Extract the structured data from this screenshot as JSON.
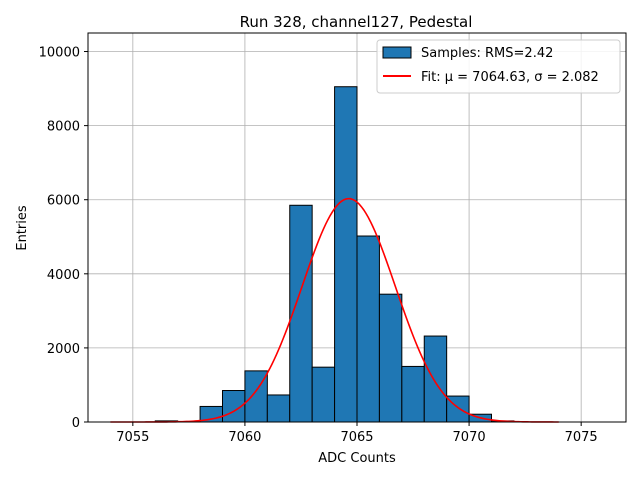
{
  "chart_data": {
    "type": "bar",
    "title": "Run 328, channel127, Pedestal",
    "xlabel": "ADC Counts",
    "ylabel": "Entries",
    "xlim": [
      7053,
      7077
    ],
    "ylim": [
      0,
      10500
    ],
    "grid": true,
    "legend_position": "top-right",
    "x_ticks": [
      7055,
      7060,
      7065,
      7070,
      7075
    ],
    "x_tick_labels": [
      "7055",
      "7060",
      "7065",
      "7070",
      "7075"
    ],
    "y_ticks": [
      0,
      2000,
      4000,
      6000,
      8000,
      10000
    ],
    "y_tick_labels": [
      "0",
      "2000",
      "4000",
      "6000",
      "8000",
      "10000"
    ],
    "bin_width": 1.0,
    "bins": [
      {
        "left": 7056.0,
        "value": 30
      },
      {
        "left": 7058.0,
        "value": 420
      },
      {
        "left": 7059.0,
        "value": 850
      },
      {
        "left": 7060.0,
        "value": 1380
      },
      {
        "left": 7061.0,
        "value": 730
      },
      {
        "left": 7062.0,
        "value": 5850
      },
      {
        "left": 7063.0,
        "value": 1480
      },
      {
        "left": 7064.0,
        "value": 9050
      },
      {
        "left": 7065.0,
        "value": 5020
      },
      {
        "left": 7066.0,
        "value": 3450
      },
      {
        "left": 7067.0,
        "value": 1500
      },
      {
        "left": 7068.0,
        "value": 2320
      },
      {
        "left": 7069.0,
        "value": 700
      },
      {
        "left": 7070.0,
        "value": 210
      },
      {
        "left": 7071.0,
        "value": 30
      }
    ],
    "series": [
      {
        "name": "Samples: RMS=2.42",
        "kind": "histogram",
        "color": "#1f77b4",
        "edge_color": "#000000"
      },
      {
        "name": "Fit: μ = 7064.63, σ = 2.082",
        "kind": "line",
        "color": "#ff0000",
        "gaussian": {
          "mu": 7064.63,
          "sigma": 2.082,
          "amplitude": 6030
        },
        "x_range": [
          7054,
          7074
        ]
      }
    ]
  }
}
